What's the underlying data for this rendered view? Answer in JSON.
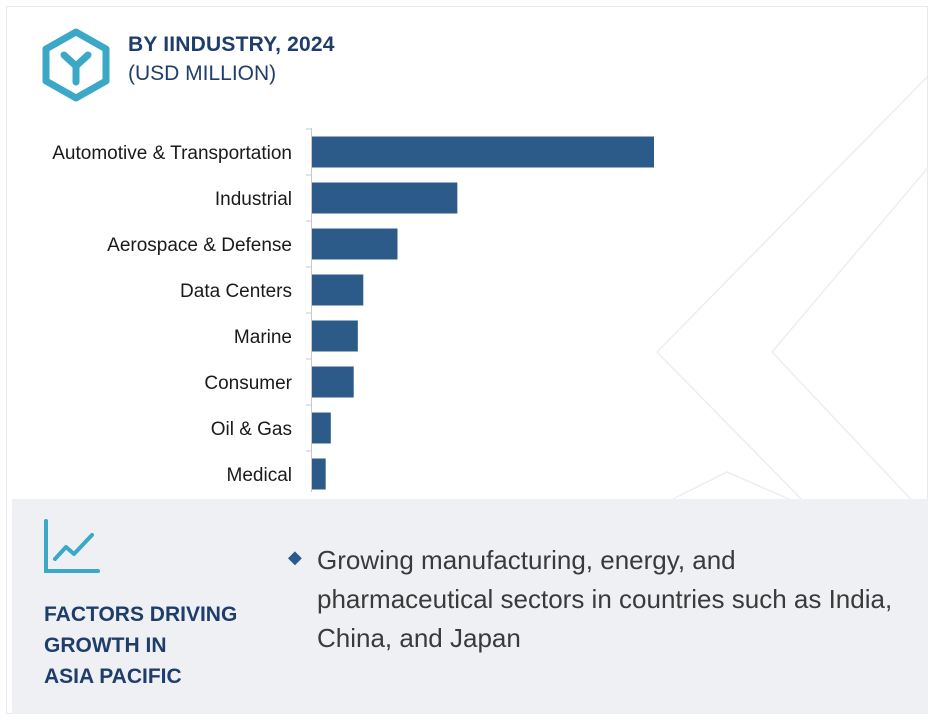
{
  "header": {
    "title": "BY IINDUSTRY, 2024",
    "subtitle": "(USD MILLION)",
    "logo_icon": "hexagon-y-icon"
  },
  "colors": {
    "bar": "#2c5b8a",
    "heading": "#1f3d6b",
    "accent": "#3aa8c6",
    "panel": "#eef0f4"
  },
  "chart_data": {
    "type": "bar",
    "orientation": "horizontal",
    "title": "BY IINDUSTRY, 2024",
    "subtitle": "(USD MILLION)",
    "categories": [
      "Automotive & Transportation",
      "Industrial",
      "Aerospace & Defense",
      "Data Centers",
      "Marine",
      "Consumer",
      "Oil & Gas",
      "Medical"
    ],
    "values": [
      100,
      42.5,
      25,
      15,
      13.4,
      12.2,
      5.5,
      4
    ],
    "xlim": [
      0,
      100
    ],
    "grid": false,
    "legend": "none"
  },
  "panel": {
    "icon": "line-chart-icon",
    "heading_lines": [
      "FACTORS DRIVING",
      "GROWTH IN",
      "ASIA PACIFIC"
    ],
    "bullet_icon": "diamond-bullet-icon",
    "driver_text": "Growing manufacturing, energy, and pharmaceutical sectors in countries such as India, China, and Japan"
  }
}
